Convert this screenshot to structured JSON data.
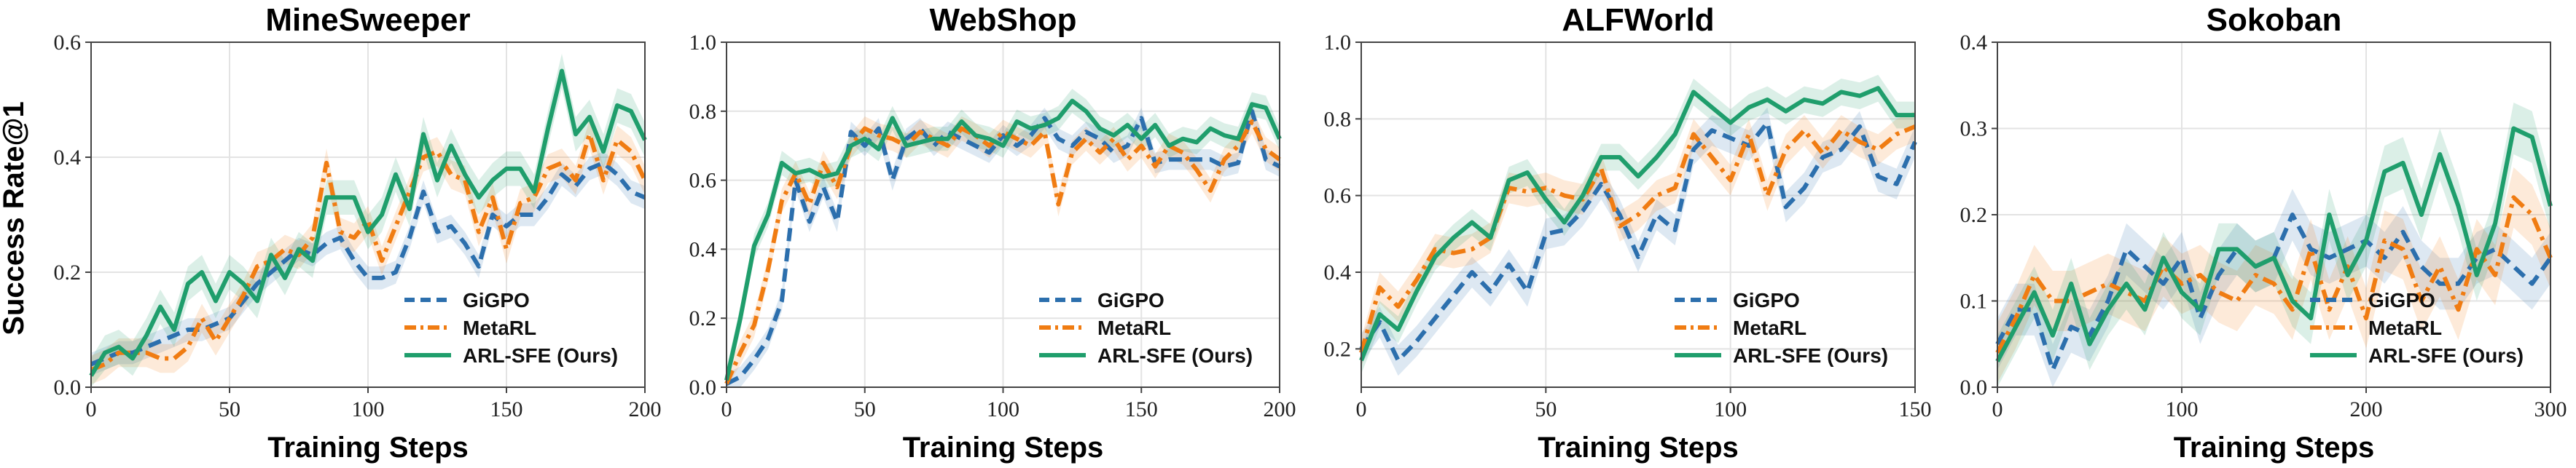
{
  "figure": {
    "ylabel": "Success Rate@1"
  },
  "colors": {
    "GiGPO": "#2c6fad",
    "MetaRL": "#f07c12",
    "ARL-SFE (Ours)": "#1f9e6c"
  },
  "chart_data": [
    {
      "type": "line",
      "title": "MineSweeper",
      "xlabel": "Training Steps",
      "ylabel": "Success Rate@1",
      "xlim": [
        0,
        200
      ],
      "ylim": [
        0,
        0.6
      ],
      "xticks": [
        0,
        50,
        100,
        150,
        200
      ],
      "yticks": [
        0.0,
        0.2,
        0.4,
        0.6
      ],
      "legend": "lower-right",
      "grid": true,
      "series": [
        {
          "name": "GiGPO",
          "x": [
            0,
            5,
            10,
            15,
            20,
            25,
            30,
            35,
            40,
            45,
            50,
            55,
            60,
            65,
            70,
            75,
            80,
            85,
            90,
            95,
            100,
            105,
            110,
            115,
            120,
            125,
            130,
            135,
            140,
            145,
            150,
            155,
            160,
            165,
            170,
            175,
            180,
            185,
            190,
            195,
            200
          ],
          "y": [
            0.04,
            0.05,
            0.06,
            0.06,
            0.07,
            0.08,
            0.09,
            0.1,
            0.1,
            0.11,
            0.12,
            0.15,
            0.18,
            0.2,
            0.22,
            0.24,
            0.23,
            0.25,
            0.26,
            0.22,
            0.19,
            0.19,
            0.2,
            0.26,
            0.34,
            0.27,
            0.28,
            0.25,
            0.21,
            0.3,
            0.28,
            0.3,
            0.3,
            0.33,
            0.37,
            0.35,
            0.38,
            0.39,
            0.37,
            0.34,
            0.33
          ],
          "band": 0.02
        },
        {
          "name": "MetaRL",
          "x": [
            0,
            5,
            10,
            15,
            20,
            25,
            30,
            35,
            40,
            45,
            50,
            55,
            60,
            65,
            70,
            75,
            80,
            85,
            90,
            95,
            100,
            105,
            110,
            115,
            120,
            125,
            130,
            135,
            140,
            145,
            150,
            155,
            160,
            165,
            170,
            175,
            180,
            185,
            190,
            195,
            200
          ],
          "y": [
            0.03,
            0.04,
            0.06,
            0.06,
            0.06,
            0.05,
            0.05,
            0.07,
            0.12,
            0.08,
            0.12,
            0.16,
            0.21,
            0.22,
            0.24,
            0.23,
            0.26,
            0.39,
            0.27,
            0.26,
            0.29,
            0.22,
            0.28,
            0.34,
            0.4,
            0.41,
            0.37,
            0.36,
            0.27,
            0.33,
            0.24,
            0.32,
            0.33,
            0.38,
            0.39,
            0.36,
            0.44,
            0.36,
            0.43,
            0.41,
            0.36
          ],
          "band": 0.025
        },
        {
          "name": "ARL-SFE (Ours)",
          "x": [
            0,
            5,
            10,
            15,
            20,
            25,
            30,
            35,
            40,
            45,
            50,
            55,
            60,
            65,
            70,
            75,
            80,
            85,
            90,
            95,
            100,
            105,
            110,
            115,
            120,
            125,
            130,
            135,
            140,
            145,
            150,
            155,
            160,
            165,
            170,
            175,
            180,
            185,
            190,
            195,
            200
          ],
          "y": [
            0.02,
            0.06,
            0.07,
            0.05,
            0.09,
            0.14,
            0.1,
            0.18,
            0.2,
            0.15,
            0.2,
            0.18,
            0.15,
            0.23,
            0.19,
            0.24,
            0.22,
            0.33,
            0.33,
            0.33,
            0.27,
            0.3,
            0.37,
            0.31,
            0.44,
            0.36,
            0.42,
            0.37,
            0.33,
            0.36,
            0.38,
            0.38,
            0.34,
            0.45,
            0.55,
            0.44,
            0.47,
            0.41,
            0.49,
            0.48,
            0.43
          ],
          "band": 0.03
        }
      ]
    },
    {
      "type": "line",
      "title": "WebShop",
      "xlabel": "Training Steps",
      "ylabel": "",
      "xlim": [
        0,
        200
      ],
      "ylim": [
        0,
        1.0
      ],
      "xticks": [
        0,
        50,
        100,
        150,
        200
      ],
      "yticks": [
        0.0,
        0.2,
        0.4,
        0.6,
        0.8,
        1.0
      ],
      "legend": "lower-right",
      "grid": true,
      "series": [
        {
          "name": "GiGPO",
          "x": [
            0,
            5,
            10,
            15,
            20,
            25,
            30,
            35,
            40,
            45,
            50,
            55,
            60,
            65,
            70,
            75,
            80,
            85,
            90,
            95,
            100,
            105,
            110,
            115,
            120,
            125,
            130,
            135,
            140,
            145,
            150,
            155,
            160,
            165,
            170,
            175,
            180,
            185,
            190,
            195,
            200
          ],
          "y": [
            0.01,
            0.03,
            0.08,
            0.14,
            0.25,
            0.6,
            0.48,
            0.58,
            0.48,
            0.74,
            0.7,
            0.75,
            0.6,
            0.72,
            0.75,
            0.7,
            0.74,
            0.72,
            0.7,
            0.68,
            0.73,
            0.7,
            0.73,
            0.78,
            0.72,
            0.7,
            0.74,
            0.72,
            0.68,
            0.7,
            0.78,
            0.65,
            0.66,
            0.66,
            0.66,
            0.66,
            0.64,
            0.65,
            0.8,
            0.66,
            0.64
          ],
          "band": 0.03
        },
        {
          "name": "MetaRL",
          "x": [
            0,
            5,
            10,
            15,
            20,
            25,
            30,
            35,
            40,
            45,
            50,
            55,
            60,
            65,
            70,
            75,
            80,
            85,
            90,
            95,
            100,
            105,
            110,
            115,
            120,
            125,
            130,
            135,
            140,
            145,
            150,
            155,
            160,
            165,
            170,
            175,
            180,
            185,
            190,
            195,
            200
          ],
          "y": [
            0.01,
            0.1,
            0.18,
            0.34,
            0.54,
            0.62,
            0.53,
            0.65,
            0.58,
            0.7,
            0.75,
            0.73,
            0.72,
            0.7,
            0.74,
            0.72,
            0.7,
            0.75,
            0.73,
            0.7,
            0.74,
            0.72,
            0.7,
            0.74,
            0.53,
            0.68,
            0.72,
            0.68,
            0.72,
            0.66,
            0.7,
            0.64,
            0.7,
            0.68,
            0.63,
            0.57,
            0.66,
            0.7,
            0.77,
            0.69,
            0.66
          ],
          "band": 0.035
        },
        {
          "name": "ARL-SFE (Ours)",
          "x": [
            0,
            5,
            10,
            15,
            20,
            25,
            30,
            35,
            40,
            45,
            50,
            55,
            60,
            65,
            70,
            75,
            80,
            85,
            90,
            95,
            100,
            105,
            110,
            115,
            120,
            125,
            130,
            135,
            140,
            145,
            150,
            155,
            160,
            165,
            170,
            175,
            180,
            185,
            190,
            195,
            200
          ],
          "y": [
            0.02,
            0.2,
            0.41,
            0.5,
            0.65,
            0.62,
            0.63,
            0.61,
            0.62,
            0.7,
            0.72,
            0.69,
            0.78,
            0.7,
            0.71,
            0.72,
            0.72,
            0.77,
            0.73,
            0.72,
            0.7,
            0.77,
            0.75,
            0.76,
            0.78,
            0.83,
            0.8,
            0.75,
            0.73,
            0.76,
            0.72,
            0.76,
            0.7,
            0.72,
            0.71,
            0.75,
            0.73,
            0.72,
            0.82,
            0.81,
            0.72
          ],
          "band": 0.035
        }
      ]
    },
    {
      "type": "line",
      "title": "ALFWorld",
      "xlabel": "Training Steps",
      "ylabel": "",
      "xlim": [
        0,
        150
      ],
      "ylim": [
        0.1,
        1.0
      ],
      "xticks": [
        0,
        50,
        100,
        150
      ],
      "yticks": [
        0.2,
        0.4,
        0.6,
        0.8,
        1.0
      ],
      "legend": "lower-right",
      "grid": true,
      "series": [
        {
          "name": "GiGPO",
          "x": [
            0,
            5,
            10,
            15,
            20,
            25,
            30,
            35,
            40,
            45,
            50,
            55,
            60,
            65,
            70,
            75,
            80,
            85,
            90,
            95,
            100,
            105,
            110,
            115,
            120,
            125,
            130,
            135,
            140,
            145,
            150
          ],
          "y": [
            0.2,
            0.27,
            0.17,
            0.22,
            0.28,
            0.34,
            0.4,
            0.35,
            0.42,
            0.35,
            0.5,
            0.51,
            0.56,
            0.63,
            0.55,
            0.44,
            0.55,
            0.51,
            0.72,
            0.77,
            0.75,
            0.73,
            0.79,
            0.57,
            0.62,
            0.7,
            0.72,
            0.78,
            0.65,
            0.63,
            0.74
          ],
          "band": 0.04
        },
        {
          "name": "MetaRL",
          "x": [
            0,
            5,
            10,
            15,
            20,
            25,
            30,
            35,
            40,
            45,
            50,
            55,
            60,
            65,
            70,
            75,
            80,
            85,
            90,
            95,
            100,
            105,
            110,
            115,
            120,
            125,
            130,
            135,
            140,
            145,
            150
          ],
          "y": [
            0.19,
            0.36,
            0.31,
            0.38,
            0.46,
            0.45,
            0.46,
            0.49,
            0.62,
            0.61,
            0.62,
            0.6,
            0.59,
            0.67,
            0.52,
            0.55,
            0.6,
            0.62,
            0.76,
            0.7,
            0.64,
            0.76,
            0.6,
            0.72,
            0.77,
            0.71,
            0.77,
            0.74,
            0.72,
            0.76,
            0.78
          ],
          "band": 0.04
        },
        {
          "name": "ARL-SFE (Ours)",
          "x": [
            0,
            5,
            10,
            15,
            20,
            25,
            30,
            35,
            40,
            45,
            50,
            55,
            60,
            65,
            70,
            75,
            80,
            85,
            90,
            95,
            100,
            105,
            110,
            115,
            120,
            125,
            130,
            135,
            140,
            145,
            150
          ],
          "y": [
            0.17,
            0.29,
            0.25,
            0.35,
            0.44,
            0.49,
            0.53,
            0.49,
            0.64,
            0.66,
            0.59,
            0.53,
            0.6,
            0.7,
            0.7,
            0.65,
            0.7,
            0.76,
            0.87,
            0.83,
            0.79,
            0.83,
            0.85,
            0.82,
            0.85,
            0.84,
            0.87,
            0.86,
            0.88,
            0.81,
            0.81
          ],
          "band": 0.035
        }
      ]
    },
    {
      "type": "line",
      "title": "Sokoban",
      "xlabel": "Training Steps",
      "ylabel": "",
      "xlim": [
        0,
        300
      ],
      "ylim": [
        0,
        0.4
      ],
      "xticks": [
        0,
        100,
        200,
        300
      ],
      "yticks": [
        0.0,
        0.1,
        0.2,
        0.3,
        0.4
      ],
      "legend": "lower-right",
      "grid": true,
      "series": [
        {
          "name": "GiGPO",
          "x": [
            0,
            10,
            20,
            30,
            40,
            50,
            60,
            70,
            80,
            90,
            100,
            110,
            120,
            130,
            140,
            150,
            160,
            170,
            180,
            190,
            200,
            210,
            220,
            230,
            240,
            250,
            260,
            270,
            280,
            290,
            300
          ],
          "y": [
            0.05,
            0.09,
            0.09,
            0.02,
            0.07,
            0.06,
            0.1,
            0.16,
            0.14,
            0.12,
            0.15,
            0.08,
            0.13,
            0.16,
            0.14,
            0.15,
            0.2,
            0.16,
            0.15,
            0.16,
            0.17,
            0.15,
            0.18,
            0.14,
            0.12,
            0.12,
            0.15,
            0.16,
            0.14,
            0.12,
            0.15
          ],
          "band": 0.03
        },
        {
          "name": "MetaRL",
          "x": [
            0,
            10,
            20,
            30,
            40,
            50,
            60,
            70,
            80,
            90,
            100,
            110,
            120,
            130,
            140,
            150,
            160,
            170,
            180,
            190,
            200,
            210,
            220,
            230,
            240,
            250,
            260,
            270,
            280,
            290,
            300
          ],
          "y": [
            0.04,
            0.08,
            0.13,
            0.1,
            0.1,
            0.11,
            0.12,
            0.11,
            0.1,
            0.14,
            0.12,
            0.13,
            0.11,
            0.1,
            0.13,
            0.12,
            0.09,
            0.16,
            0.09,
            0.14,
            0.08,
            0.17,
            0.16,
            0.1,
            0.14,
            0.09,
            0.16,
            0.13,
            0.22,
            0.2,
            0.15
          ],
          "band": 0.035
        },
        {
          "name": "ARL-SFE (Ours)",
          "x": [
            0,
            10,
            20,
            30,
            40,
            50,
            60,
            70,
            80,
            90,
            100,
            110,
            120,
            130,
            140,
            150,
            160,
            170,
            180,
            190,
            200,
            210,
            220,
            230,
            240,
            250,
            260,
            270,
            280,
            290,
            300
          ],
          "y": [
            0.03,
            0.07,
            0.11,
            0.06,
            0.12,
            0.05,
            0.09,
            0.12,
            0.09,
            0.15,
            0.11,
            0.09,
            0.16,
            0.16,
            0.14,
            0.15,
            0.1,
            0.08,
            0.2,
            0.13,
            0.17,
            0.25,
            0.26,
            0.2,
            0.27,
            0.21,
            0.13,
            0.19,
            0.3,
            0.29,
            0.21
          ],
          "band": 0.03
        }
      ]
    }
  ]
}
